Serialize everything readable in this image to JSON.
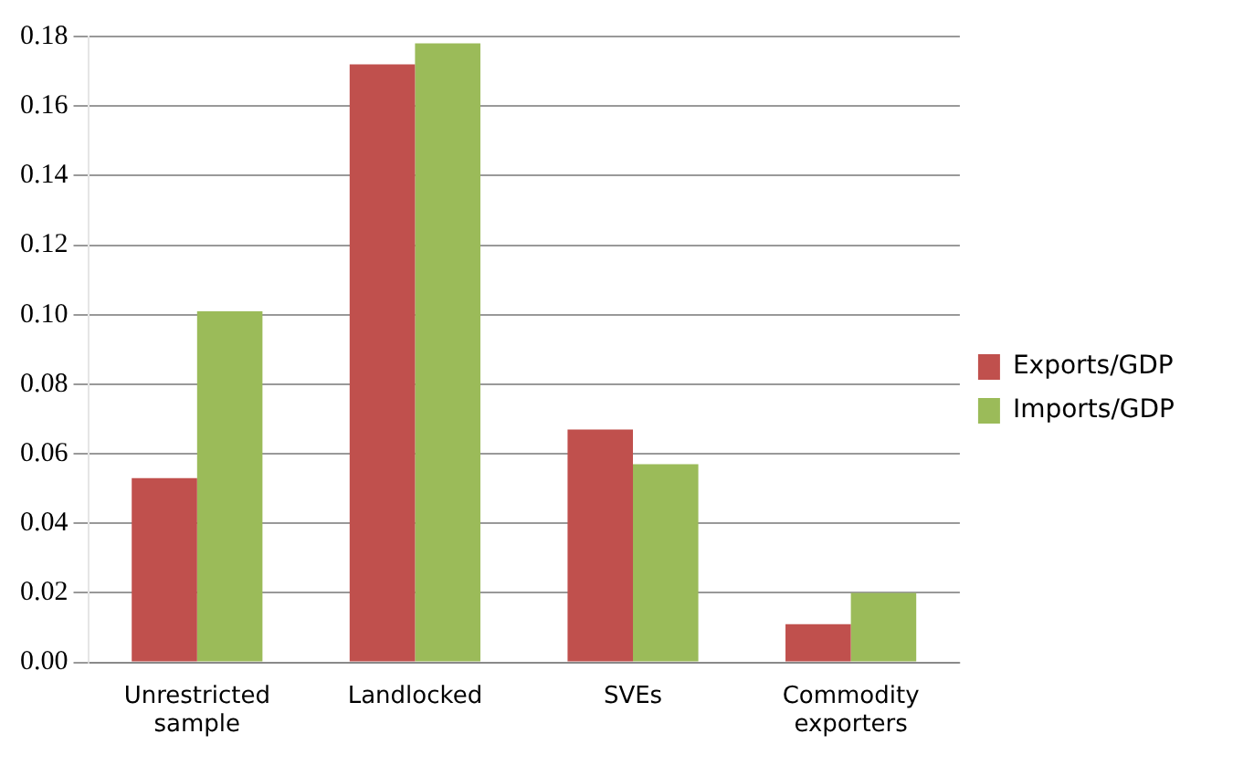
{
  "chart_data": {
    "type": "bar",
    "categories": [
      "Unrestricted sample",
      "Landlocked",
      "SVEs",
      "Commodity exporters"
    ],
    "series": [
      {
        "name": "Exports/GDP",
        "color": "#c0504d",
        "values": [
          0.053,
          0.172,
          0.067,
          0.011
        ]
      },
      {
        "name": "Imports/GDP",
        "color": "#9bbb59",
        "values": [
          0.101,
          0.178,
          0.057,
          0.02
        ]
      }
    ],
    "ylim": [
      0,
      0.18
    ],
    "yticks": [
      {
        "value": 0,
        "label": "0.00"
      },
      {
        "value": 0.02,
        "label": "0.02"
      },
      {
        "value": 0.04,
        "label": "0.04"
      },
      {
        "value": 0.06,
        "label": "0.06"
      },
      {
        "value": 0.08,
        "label": "0.08"
      },
      {
        "value": 0.1,
        "label": "0.10"
      },
      {
        "value": 0.12,
        "label": "0.12"
      },
      {
        "value": 0.14,
        "label": "0.14"
      },
      {
        "value": 0.16,
        "label": "0.16"
      },
      {
        "value": 0.18,
        "label": "0.18"
      }
    ],
    "grid": "y",
    "legend": "right"
  }
}
